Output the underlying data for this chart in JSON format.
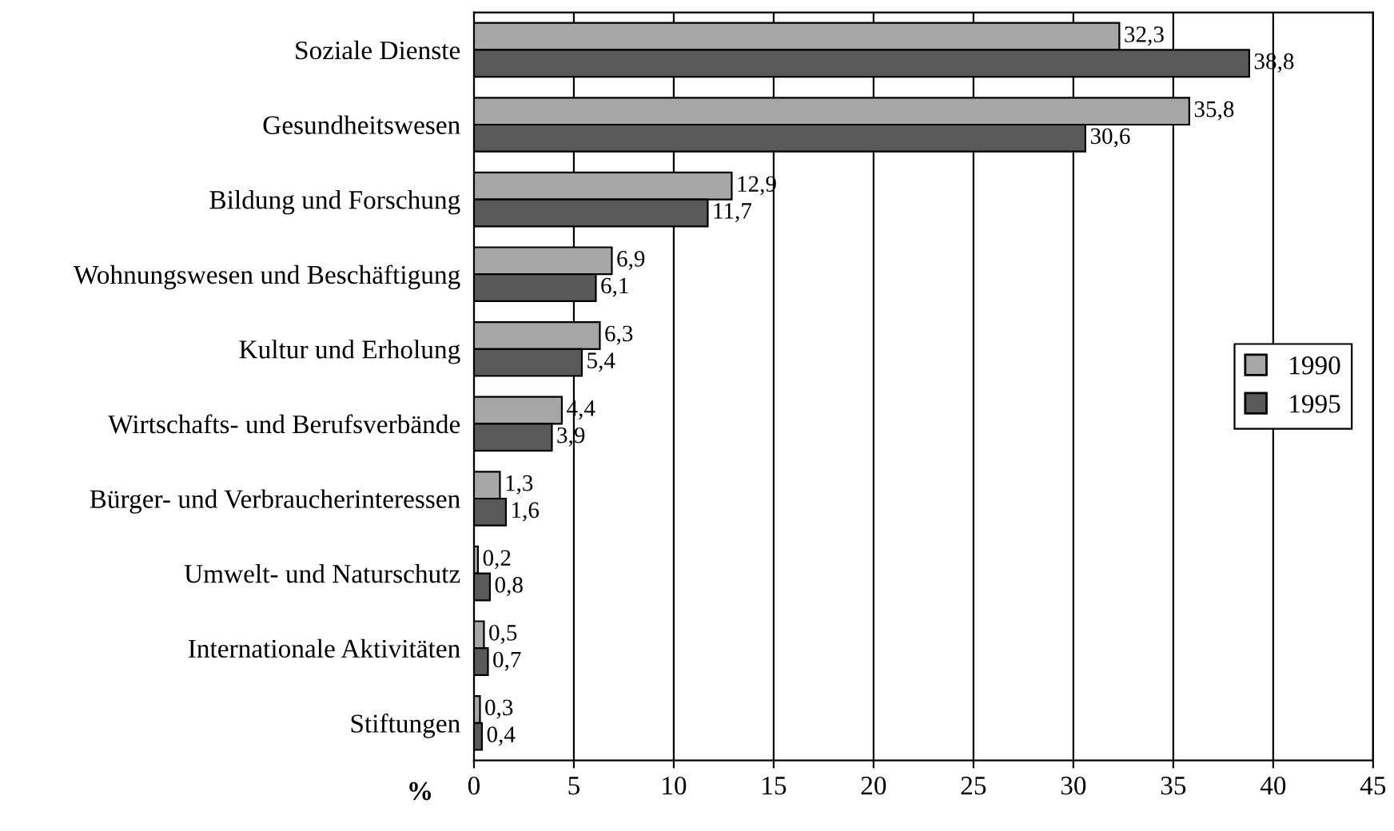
{
  "chart_data": {
    "type": "bar",
    "orientation": "horizontal",
    "xlabel": "%",
    "categories": [
      "Soziale Dienste",
      "Gesundheitswesen",
      "Bildung und Forschung",
      "Wohnungswesen und Beschäftigung",
      "Kultur und Erholung",
      "Wirtschafts- und Berufsverbände",
      "Bürger- und Verbraucherinteressen",
      "Umwelt- und Naturschutz",
      "Internationale Aktivitäten",
      "Stiftungen"
    ],
    "series": [
      {
        "name": "1990",
        "color": "#a6a6a6",
        "values": [
          32.3,
          35.8,
          12.9,
          6.9,
          6.3,
          4.4,
          1.3,
          0.2,
          0.5,
          0.3
        ],
        "value_labels": [
          "32,3",
          "35,8",
          "12,9",
          "6,9",
          "6,3",
          "4,4",
          "1,3",
          "0,2",
          "0,5",
          "0,3"
        ]
      },
      {
        "name": "1995",
        "color": "#595959",
        "values": [
          38.8,
          30.6,
          11.7,
          6.1,
          5.4,
          3.9,
          1.6,
          0.8,
          0.7,
          0.4
        ],
        "value_labels": [
          "38,8",
          "30,6",
          "11,7",
          "6,1",
          "5,4",
          "3,9",
          "1,6",
          "0,8",
          "0,7",
          "0,4"
        ]
      }
    ],
    "xlim": [
      0,
      45
    ],
    "xticks": [
      0,
      5,
      10,
      15,
      20,
      25,
      30,
      35,
      40,
      45
    ],
    "grid": "x",
    "legend": "right"
  }
}
